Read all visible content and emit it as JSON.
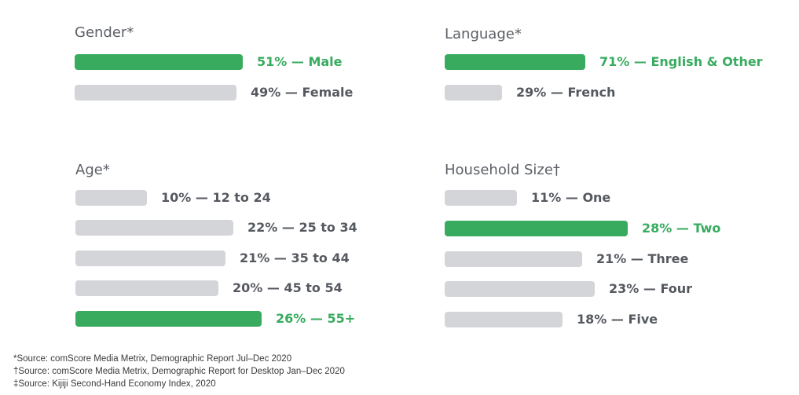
{
  "chart_data": [
    {
      "type": "bar",
      "title": "Gender*",
      "unit": "%",
      "categories": [
        "Male",
        "Female"
      ],
      "values": [
        51,
        49
      ],
      "labels": [
        "51% — Male",
        "49% — Female"
      ],
      "highlight": [
        true,
        false
      ],
      "xlim": [
        0,
        51
      ]
    },
    {
      "type": "bar",
      "title": "Language*",
      "unit": "%",
      "categories": [
        "English & Other",
        "French"
      ],
      "values": [
        71,
        29
      ],
      "labels": [
        "71% — English & Other",
        "29% — French"
      ],
      "highlight": [
        true,
        false
      ],
      "xlim": [
        0,
        71
      ]
    },
    {
      "type": "bar",
      "title": "Age*",
      "unit": "%",
      "categories": [
        "12 to 24",
        "25 to 34",
        "35 to 44",
        "45 to 54",
        "55+"
      ],
      "values": [
        10,
        22,
        21,
        20,
        26
      ],
      "labels": [
        "10% — 12 to 24",
        "22% — 25 to 34",
        "21% — 35 to 44",
        "20% — 45 to 54",
        "26% — 55+"
      ],
      "highlight": [
        false,
        false,
        false,
        false,
        true
      ],
      "xlim": [
        0,
        26
      ]
    },
    {
      "type": "bar",
      "title": "Household Size†",
      "unit": "%",
      "categories": [
        "One",
        "Two",
        "Three",
        "Four",
        "Five"
      ],
      "values": [
        11,
        28,
        21,
        23,
        18
      ],
      "labels": [
        "11% — One",
        "28% — Two",
        "21% — Three",
        "23% — Four",
        "18% — Five"
      ],
      "highlight": [
        false,
        true,
        false,
        false,
        false
      ],
      "xlim": [
        0,
        28
      ]
    }
  ],
  "colors": {
    "highlight": "#38ab5f",
    "bar": "#d4d5d8",
    "title": "#5b5f66",
    "label": "#55595f"
  },
  "footnotes": [
    "*Source: comScore Media Metrix, Demographic Report Jul–Dec 2020",
    "†Source: comScore Media Metrix, Demographic Report for Desktop Jan–Dec 2020",
    "‡Source: Kijiji Second-Hand Economy Index, 2020"
  ]
}
